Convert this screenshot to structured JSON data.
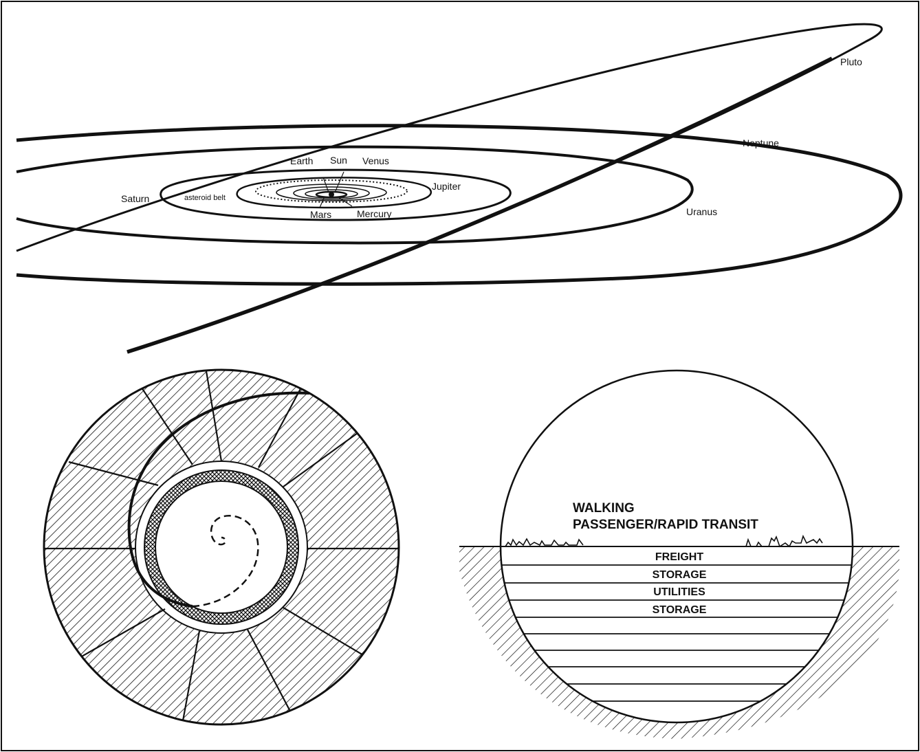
{
  "solar_system": {
    "labels": {
      "pluto": "Pluto",
      "neptune": "Neptune",
      "earth": "Earth",
      "sun": "Sun",
      "venus": "Venus",
      "jupiter": "Jupiter",
      "saturn": "Saturn",
      "asteroid_belt": "asteroid belt",
      "mars": "Mars",
      "mercury": "Mercury",
      "uranus": "Uranus"
    }
  },
  "tunnel_section": {
    "upper_labels": [
      "WALKING",
      "PASSENGER/RAPID TRANSIT"
    ],
    "levels": [
      "FREIGHT",
      "STORAGE",
      "UTILITIES",
      "STORAGE"
    ]
  }
}
